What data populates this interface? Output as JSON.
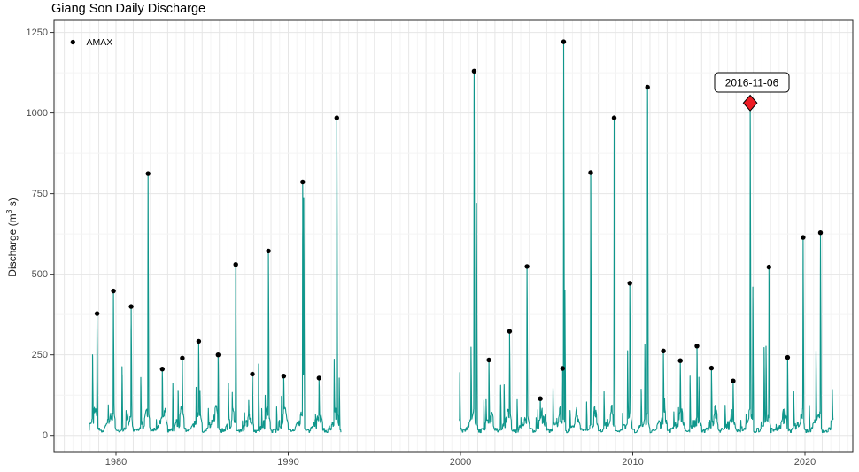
{
  "header": {
    "title": "Giang Son Daily Discharge"
  },
  "chart_data": {
    "type": "line",
    "title": "Giang Son Daily Discharge",
    "xlabel": "",
    "ylabel": {
      "pre": "Discharge (m",
      "sup": "3",
      "post": " s)"
    },
    "legend": [
      {
        "label": "AMAX",
        "marker": "point",
        "color": "#000000",
        "position": "top-left-inside"
      }
    ],
    "x_ticks": [
      1980,
      1990,
      2000,
      2010,
      2020
    ],
    "y_ticks": [
      0,
      250,
      500,
      750,
      1000,
      1250
    ],
    "x_range": [
      1976.4,
      2022.8
    ],
    "y_range": [
      -50,
      1287
    ],
    "grid": "on",
    "colors": {
      "line": "#0f968b",
      "point": "#000000",
      "highlight": "#ed1c24",
      "grid_major": "#e6e6e6",
      "grid_minor": "#f4f4f4",
      "panel_border": "#262626",
      "tick": "#333333",
      "tick_label": "#4d4d4d"
    },
    "segments": [
      [
        1978.42,
        1993.06
      ],
      [
        1999.93,
        2021.65
      ]
    ],
    "amax_series": {
      "name": "AMAX",
      "points": [
        {
          "year": 1978,
          "t": 1978.9,
          "value": 378
        },
        {
          "year": 1979,
          "t": 1979.85,
          "value": 448
        },
        {
          "year": 1980,
          "t": 1980.88,
          "value": 400
        },
        {
          "year": 1981,
          "t": 1981.86,
          "value": 812
        },
        {
          "year": 1982,
          "t": 1982.69,
          "value": 206
        },
        {
          "year": 1983,
          "t": 1983.85,
          "value": 240
        },
        {
          "year": 1984,
          "t": 1984.8,
          "value": 292
        },
        {
          "year": 1985,
          "t": 1985.93,
          "value": 250
        },
        {
          "year": 1986,
          "t": 1986.95,
          "value": 530
        },
        {
          "year": 1987,
          "t": 1987.92,
          "value": 190
        },
        {
          "year": 1988,
          "t": 1988.85,
          "value": 572
        },
        {
          "year": 1989,
          "t": 1989.74,
          "value": 184
        },
        {
          "year": 1990,
          "t": 1990.84,
          "value": 786
        },
        {
          "year": 1991,
          "t": 1991.79,
          "value": 178
        },
        {
          "year": 1992,
          "t": 1992.82,
          "value": 985
        },
        {
          "year": 2000,
          "t": 2000.79,
          "value": 1130
        },
        {
          "year": 2001,
          "t": 2001.65,
          "value": 234
        },
        {
          "year": 2002,
          "t": 2002.85,
          "value": 323
        },
        {
          "year": 2003,
          "t": 2003.86,
          "value": 524
        },
        {
          "year": 2004,
          "t": 2004.63,
          "value": 114
        },
        {
          "year": 2005,
          "t": 2005.93,
          "value": 208
        },
        {
          "year": 2006,
          "t": 2005.99,
          "value": 1221
        },
        {
          "year": 2007,
          "t": 2007.56,
          "value": 815
        },
        {
          "year": 2008,
          "t": 2008.92,
          "value": 985
        },
        {
          "year": 2009,
          "t": 2009.83,
          "value": 472
        },
        {
          "year": 2010,
          "t": 2010.86,
          "value": 1080
        },
        {
          "year": 2011,
          "t": 2011.78,
          "value": 262
        },
        {
          "year": 2012,
          "t": 2012.76,
          "value": 232
        },
        {
          "year": 2013,
          "t": 2013.73,
          "value": 277
        },
        {
          "year": 2014,
          "t": 2014.57,
          "value": 209
        },
        {
          "year": 2015,
          "t": 2015.83,
          "value": 169
        },
        {
          "year": 2017,
          "t": 2017.91,
          "value": 522
        },
        {
          "year": 2018,
          "t": 2018.99,
          "value": 242
        },
        {
          "year": 2019,
          "t": 2019.89,
          "value": 614
        },
        {
          "year": 2020,
          "t": 2020.9,
          "value": 629
        }
      ]
    },
    "highlight": {
      "label": "2016-11-06",
      "year": 2016,
      "t": 2016.82,
      "value": 1031,
      "marker": "diamond"
    },
    "extra_spikes": [
      [
        1978.64,
        250
      ],
      [
        1990.9,
        735
      ],
      [
        1992.96,
        178
      ],
      [
        1999.96,
        195
      ],
      [
        2000.93,
        720
      ],
      [
        2006.06,
        450
      ],
      [
        2016.97,
        460
      ]
    ]
  }
}
